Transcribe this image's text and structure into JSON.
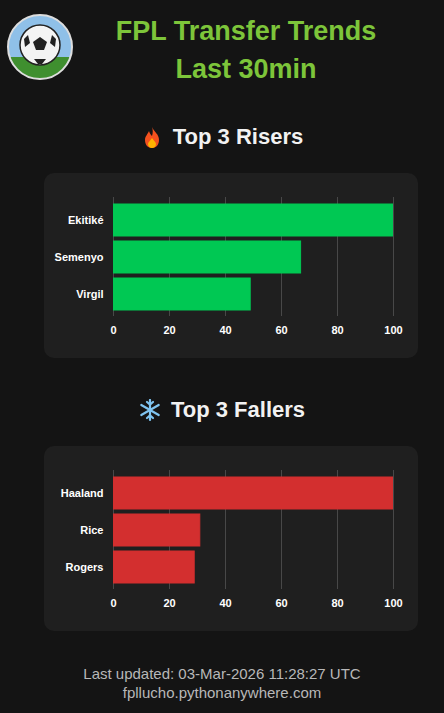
{
  "page": {
    "title": [
      "FPL Transfer Trends",
      "Last 30min"
    ],
    "footer": [
      "Last updated: 03-Mar-2026 11:28:27 UTC",
      "fpllucho.pythonanywhere.com"
    ]
  },
  "chart_data": [
    {
      "type": "bar",
      "title": "Top 3 Risers",
      "orientation": "horizontal",
      "categories": [
        "Ekitiké",
        "Semenyo",
        "Virgil"
      ],
      "values": [
        100,
        67,
        49
      ],
      "color": "#00c853",
      "xlim": [
        0,
        100
      ],
      "xticks": [
        0,
        20,
        40,
        60,
        80,
        100
      ],
      "grid": true
    },
    {
      "type": "bar",
      "title": "Top 3 Fallers",
      "orientation": "horizontal",
      "categories": [
        "Haaland",
        "Rice",
        "Rogers"
      ],
      "values": [
        100,
        31,
        29
      ],
      "color": "#d32f2f",
      "xlim": [
        0,
        100
      ],
      "xticks": [
        0,
        20,
        40,
        60,
        80,
        100
      ],
      "grid": true
    }
  ]
}
